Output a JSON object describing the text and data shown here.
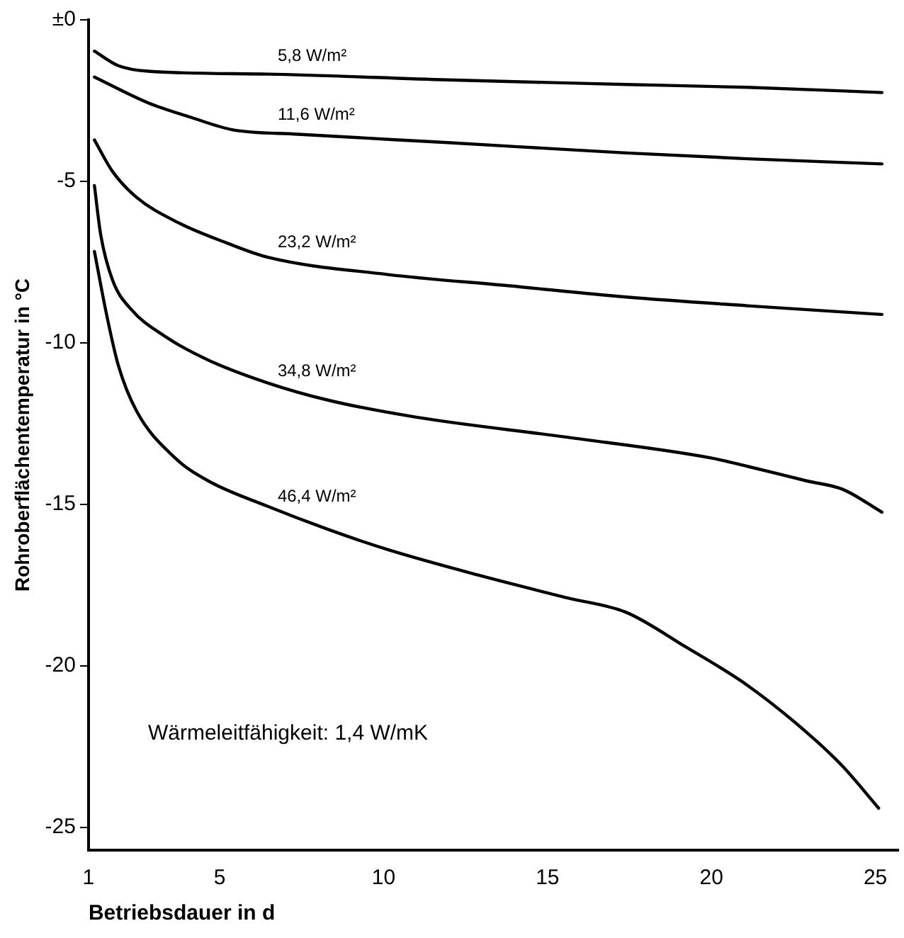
{
  "chart_data": {
    "type": "line",
    "xlabel": "Betriebsdauer in d",
    "ylabel": "Rohroberflächentemperatur in °C",
    "xlim": [
      1,
      25.7
    ],
    "xticks": [
      1,
      5,
      10,
      15,
      20,
      25
    ],
    "ylim": [
      -25.7,
      0
    ],
    "yticks": [
      {
        "value": 0,
        "label": "±0"
      },
      -5,
      -10,
      -15,
      -20,
      -25
    ],
    "grid": false,
    "legend": false,
    "marker": "none",
    "line_style": "solid",
    "series": [
      {
        "name": "5,8 W/m²",
        "color": "#000000",
        "x": [
          1.18,
          1.91,
          2.82,
          6.47,
          11.95,
          17.4,
          21.1,
          25.2
        ],
        "values": [
          -0.97,
          -1.42,
          -1.59,
          -1.68,
          -1.86,
          -2.0,
          -2.09,
          -2.25
        ]
      },
      {
        "name": "11,6 W/m²",
        "color": "#000000",
        "x": [
          1.18,
          2.82,
          4.1,
          5.38,
          7.39,
          11.95,
          17.4,
          21.1,
          25.2
        ],
        "values": [
          -1.77,
          -2.57,
          -3.01,
          -3.4,
          -3.54,
          -3.8,
          -4.12,
          -4.3,
          -4.46
        ]
      },
      {
        "name": "23,2 W/m²",
        "color": "#000000",
        "x": [
          1.18,
          1.73,
          2.46,
          3.74,
          5.2,
          6.47,
          10.1,
          13.8,
          17.4,
          21.1,
          25.2
        ],
        "values": [
          -3.72,
          -4.69,
          -5.49,
          -6.28,
          -6.9,
          -7.35,
          -7.88,
          -8.23,
          -8.58,
          -8.85,
          -9.12
        ]
      },
      {
        "name": "34,8 W/m²",
        "color": "#000000",
        "x": [
          1.18,
          1.37,
          1.73,
          2.28,
          3.37,
          4.65,
          6.47,
          8.3,
          11.0,
          15.6,
          19.98,
          21.1,
          22.9,
          24.0,
          25.2
        ],
        "values": [
          -5.13,
          -6.64,
          -8.05,
          -8.94,
          -9.82,
          -10.53,
          -11.24,
          -11.77,
          -12.3,
          -12.92,
          -13.56,
          -13.82,
          -14.27,
          -14.53,
          -15.24
        ]
      },
      {
        "name": "46,4 W/m²",
        "color": "#000000",
        "x": [
          1.18,
          1.55,
          1.91,
          2.46,
          3.64,
          4.65,
          6.47,
          8.3,
          10.1,
          12.9,
          15.6,
          17.4,
          19.2,
          21.1,
          22.9,
          24.0,
          25.1
        ],
        "values": [
          -7.17,
          -9.12,
          -10.7,
          -12.1,
          -13.56,
          -14.27,
          -15.06,
          -15.77,
          -16.39,
          -17.19,
          -17.89,
          -18.34,
          -19.4,
          -20.6,
          -22.05,
          -23.1,
          -24.4
        ]
      }
    ],
    "annotations": [
      "Wärmeleitfähigkeit: 1,4 W/mK"
    ]
  }
}
